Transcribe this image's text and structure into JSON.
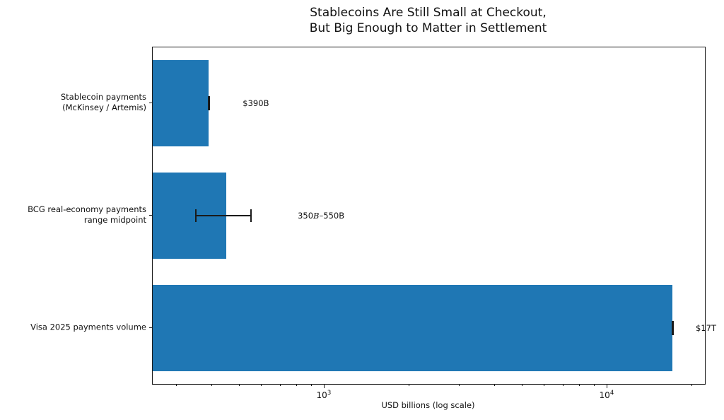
{
  "chart_data": {
    "type": "bar",
    "orientation": "horizontal",
    "title": "Stablecoins Are Still Small at Checkout,\nBut Big Enough to Matter in Settlement",
    "xlabel": "USD billions (log scale)",
    "xscale": "log",
    "xlim": [
      247,
      22150
    ],
    "grid": false,
    "legend": false,
    "categories": [
      "Stablecoin payments\n(McKinsey / Artemis)",
      "BCG real-economy payments\nrange midpoint",
      "Visa 2025 payments volume"
    ],
    "values": [
      390,
      450,
      17000
    ],
    "error_ranges": [
      [
        390,
        390
      ],
      [
        350,
        550
      ],
      [
        17000,
        17000
      ]
    ],
    "annotations": [
      [
        {
          "text": "$390B",
          "italic": false
        }
      ],
      [
        {
          "text": "350",
          "italic": false
        },
        {
          "text": "B",
          "italic": true
        },
        {
          "text": "–550B",
          "italic": false
        }
      ],
      [
        {
          "text": "$17T",
          "italic": false
        }
      ]
    ],
    "xticks": [
      {
        "base": "10",
        "exp": "3",
        "value": 1000
      },
      {
        "base": "10",
        "exp": "4",
        "value": 10000
      }
    ],
    "bar_color": "#1f77b4",
    "error_color": "#1a1a1a"
  }
}
